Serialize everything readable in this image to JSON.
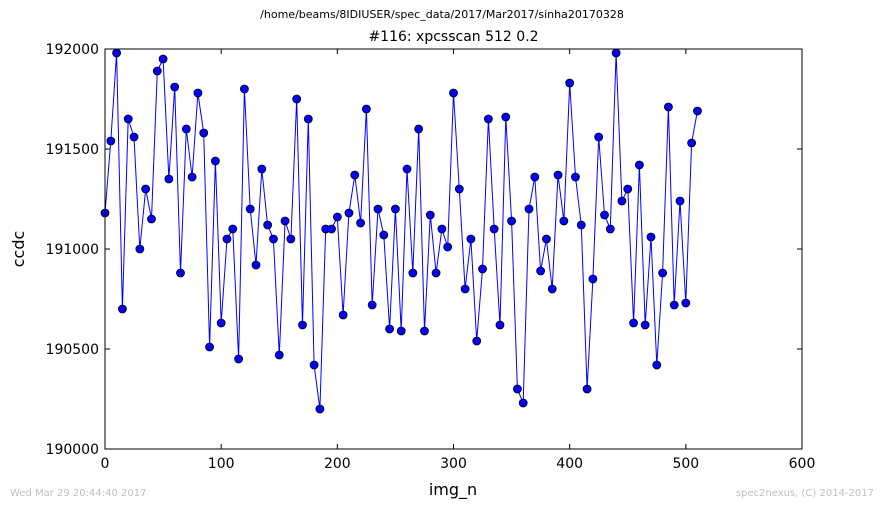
{
  "figure": {
    "suptitle": "/home/beams/8IDIUSER/spec_data/2017/Mar2017/sinha20170328",
    "footer_left": "Wed Mar 29 20:44:40 2017",
    "footer_right": "spec2nexus, (C) 2014-2017"
  },
  "chart_data": {
    "type": "line",
    "title": "#116: xpcsscan 512 0.2",
    "xlabel": "img_n",
    "ylabel": "ccdc",
    "xlim": [
      0,
      600
    ],
    "ylim": [
      190000,
      192000
    ],
    "xticks": [
      0,
      100,
      200,
      300,
      400,
      500,
      600
    ],
    "yticks": [
      190000,
      190500,
      191000,
      191500,
      192000
    ],
    "grid": false,
    "marker": "circle",
    "color": "#0000ff",
    "series": [
      {
        "x": [
          0,
          5,
          10,
          15,
          20,
          25,
          30,
          35,
          40,
          45,
          50,
          55,
          60,
          65,
          70,
          75,
          80,
          85,
          90,
          95,
          100,
          105,
          110,
          115,
          120,
          125,
          130,
          135,
          140,
          145,
          150,
          155,
          160,
          165,
          170,
          175,
          180,
          185,
          190,
          195,
          200,
          205,
          210,
          215,
          220,
          225,
          230,
          235,
          240,
          245,
          250,
          255,
          260,
          265,
          270,
          275,
          280,
          285,
          290,
          295,
          300,
          305,
          310,
          315,
          320,
          325,
          330,
          335,
          340,
          345,
          350,
          355,
          360,
          365,
          370,
          375,
          380,
          385,
          390,
          395,
          400,
          405,
          410,
          415,
          420,
          425,
          430,
          435,
          440,
          445,
          450,
          455,
          460,
          465,
          470,
          475,
          480,
          485,
          490,
          495,
          500,
          505,
          510
        ],
        "values": [
          191180,
          191540,
          191980,
          190700,
          191650,
          191560,
          191000,
          191300,
          191150,
          191890,
          191950,
          191350,
          191810,
          190880,
          191600,
          191360,
          191780,
          191580,
          190510,
          191440,
          190630,
          191050,
          191100,
          190450,
          191800,
          191200,
          190920,
          191400,
          191120,
          191050,
          190470,
          191140,
          191050,
          191750,
          190620,
          191650,
          190420,
          190200,
          191100,
          191100,
          191160,
          190670,
          191180,
          191370,
          191130,
          191700,
          190720,
          191200,
          191070,
          190600,
          191200,
          190590,
          191400,
          190880,
          191600,
          190590,
          191170,
          190880,
          191100,
          191010,
          191780,
          191300,
          190800,
          191050,
          190540,
          190900,
          191650,
          191100,
          190620,
          191660,
          191140,
          190300,
          190230,
          191200,
          191360,
          190890,
          191050,
          190800,
          191370,
          191140,
          191830,
          191360,
          191120,
          190300,
          190850,
          191560,
          191170,
          191100,
          191980,
          191240,
          191300,
          190630,
          191420,
          190620,
          191060,
          190420,
          190880,
          191710,
          190720,
          191240,
          190730,
          191530,
          191690
        ]
      }
    ]
  }
}
